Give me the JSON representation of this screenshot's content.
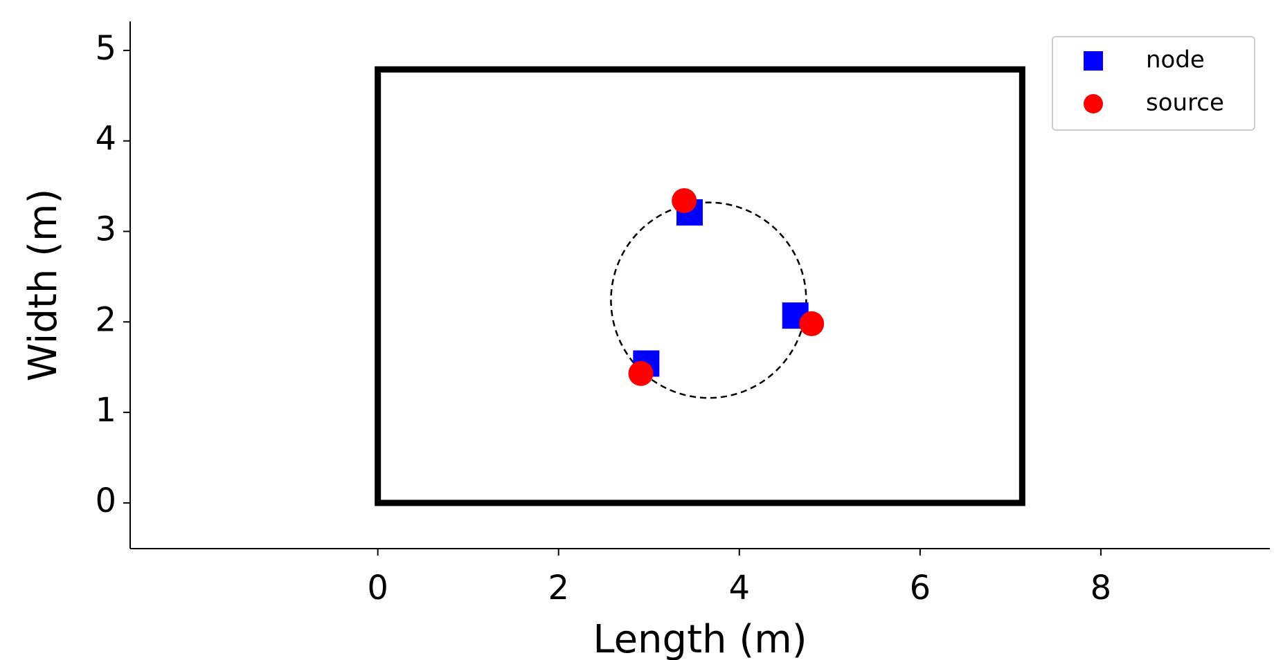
{
  "chart_data": {
    "type": "scatter",
    "xlabel": "Length (m)",
    "ylabel": "Width (m)",
    "xlim": [
      -2.74,
      9.87
    ],
    "ylim": [
      -0.505,
      5.32
    ],
    "xticks": [
      0,
      2,
      4,
      6,
      8
    ],
    "yticks": [
      0,
      1,
      2,
      3,
      4,
      5
    ],
    "legend": "upper right",
    "series": [
      {
        "name": "node",
        "color": "#0000ff",
        "marker": "square",
        "x": [
          3.45,
          4.62,
          2.97
        ],
        "values": [
          3.21,
          2.07,
          1.54
        ]
      },
      {
        "name": "source",
        "color": "#ff0000",
        "marker": "circle",
        "x": [
          3.39,
          4.8,
          2.91
        ],
        "values": [
          3.34,
          1.98,
          1.43
        ]
      }
    ],
    "room": {
      "x": [
        0,
        7.13
      ],
      "y": [
        0,
        4.79
      ]
    },
    "circle": {
      "center": [
        3.66,
        2.24
      ],
      "radius": 1.08
    }
  }
}
